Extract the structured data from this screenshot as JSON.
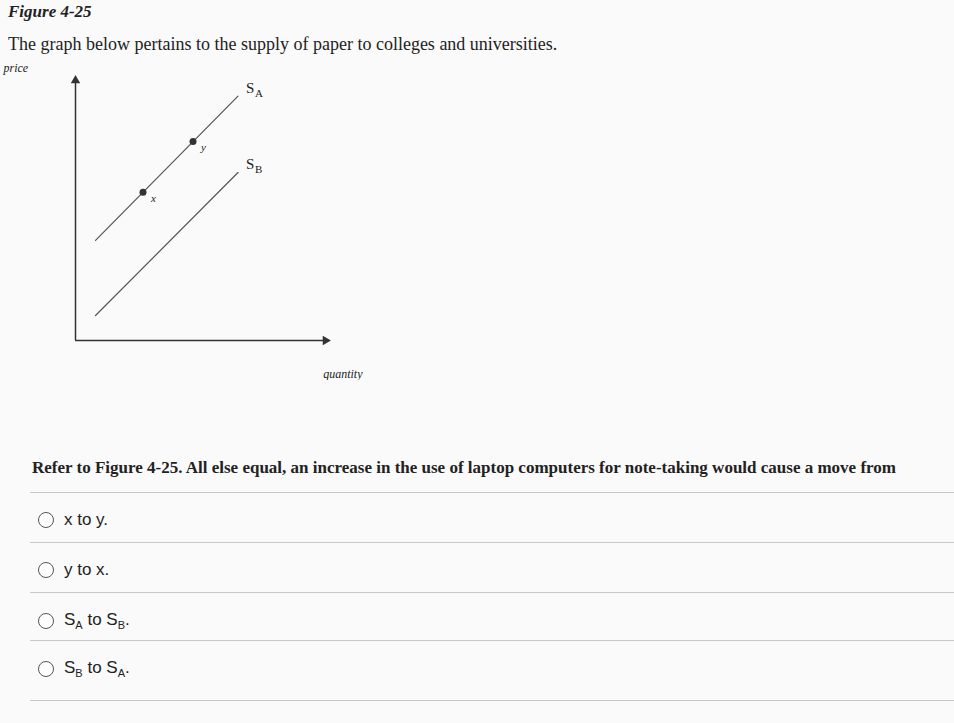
{
  "figure_title": "Figure 4-25",
  "caption": "The graph below pertains to the supply of paper to colleges and universities.",
  "chart_data": {
    "type": "line",
    "x_label": "quantity",
    "y_label": "price",
    "xlim": [
      0,
      100
    ],
    "ylim": [
      0,
      100
    ],
    "xticks": [],
    "yticks": [],
    "tick_labels": false,
    "series": [
      {
        "name": "SA",
        "color": "#555555",
        "x": [
          8,
          65
        ],
        "values": [
          38.5,
          94
        ]
      },
      {
        "name": "SB",
        "color": "#555555",
        "x": [
          8,
          65
        ],
        "values": [
          9.6,
          64.6
        ]
      }
    ],
    "points": [
      {
        "label": "x",
        "x": 27,
        "y": 57
      },
      {
        "label": "y",
        "x": 47,
        "y": 76.5
      }
    ]
  },
  "question": "Refer to Figure 4-25. All else equal, an increase in the use of laptop computers for note-taking would cause a move from",
  "options": [
    "x to y.",
    "y to x.",
    "SA to SB.",
    "SB to SA."
  ]
}
